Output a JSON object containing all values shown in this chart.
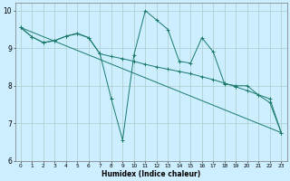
{
  "bg_color": "#cceeff",
  "grid_color": "#aacccc",
  "line_color": "#1a7a6a",
  "xlabel": "Humidex (Indice chaleur)",
  "xlim": [
    -0.5,
    23.5
  ],
  "ylim": [
    6,
    10.2
  ],
  "ytick_values": [
    6,
    7,
    8,
    9,
    10
  ],
  "line1_x": [
    0,
    1,
    2,
    3,
    4,
    5,
    6,
    7,
    8,
    9,
    10,
    11,
    12,
    13,
    14,
    15,
    16,
    17,
    18,
    19,
    20,
    21,
    22,
    23
  ],
  "line1_y": [
    9.55,
    9.3,
    9.15,
    9.2,
    9.32,
    9.38,
    9.28,
    8.85,
    8.78,
    8.72,
    8.65,
    8.57,
    8.5,
    8.44,
    8.38,
    8.32,
    8.24,
    8.16,
    8.07,
    7.97,
    7.87,
    7.76,
    7.65,
    6.75
  ],
  "line2_x": [
    0,
    1,
    2,
    3,
    4,
    5,
    6,
    7,
    8,
    9,
    10,
    11,
    12,
    13,
    14,
    15,
    16,
    17,
    18,
    19,
    20,
    21,
    22,
    23
  ],
  "line2_y": [
    9.55,
    9.3,
    9.15,
    9.2,
    9.32,
    9.4,
    9.28,
    8.85,
    7.65,
    6.55,
    8.82,
    10.0,
    9.75,
    9.5,
    8.65,
    8.6,
    9.28,
    8.9,
    8.05,
    8.0,
    8.0,
    7.75,
    7.55,
    6.75
  ],
  "line3_x": [
    0,
    23
  ],
  "line3_y": [
    9.55,
    6.75
  ]
}
